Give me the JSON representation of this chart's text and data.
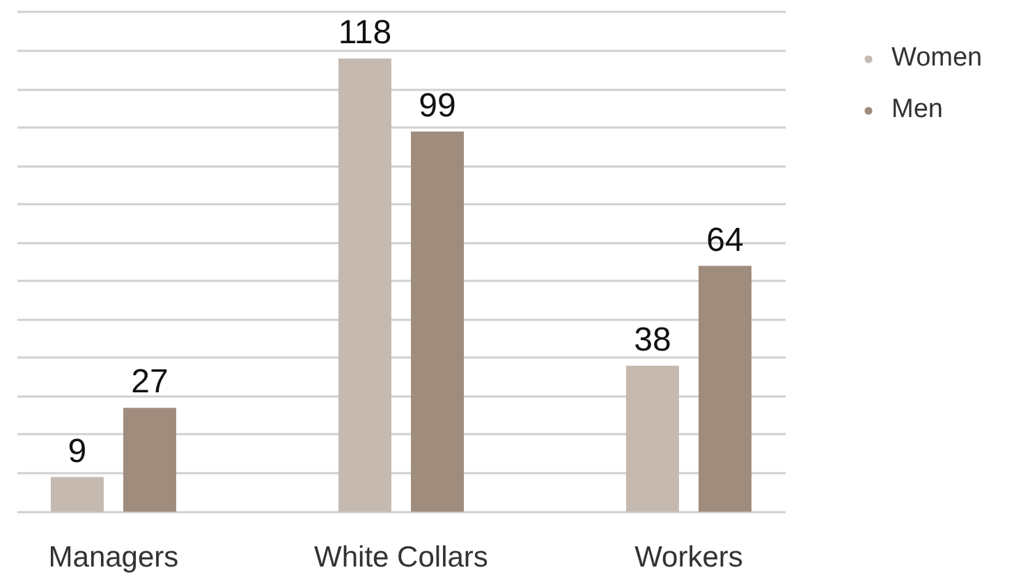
{
  "chart_data": {
    "type": "bar",
    "categories": [
      "Managers",
      "White Collars",
      "Workers"
    ],
    "series": [
      {
        "name": "Women",
        "color": "#c5b9b0",
        "values": [
          9,
          118,
          38
        ]
      },
      {
        "name": "Men",
        "color": "#a08c7d",
        "values": [
          27,
          99,
          64
        ]
      }
    ],
    "yticks": [
      {
        "value": 0,
        "label": null
      },
      {
        "value": 10,
        "label": null
      },
      {
        "value": 20,
        "label": null
      },
      {
        "value": 30,
        "label": null
      },
      {
        "value": 40,
        "label": null
      },
      {
        "value": 50,
        "label": null
      },
      {
        "value": 60,
        "label": null
      },
      {
        "value": 70,
        "label": null
      },
      {
        "value": 80,
        "label": null
      },
      {
        "value": 90,
        "label": null
      },
      {
        "value": 100,
        "label": null
      },
      {
        "value": 110,
        "label": null
      },
      {
        "value": 120,
        "label": null
      },
      {
        "value": 130,
        "label": null
      }
    ],
    "grid": "y",
    "legend": "top right",
    "tick_labels": "x",
    "data_labels": true
  }
}
